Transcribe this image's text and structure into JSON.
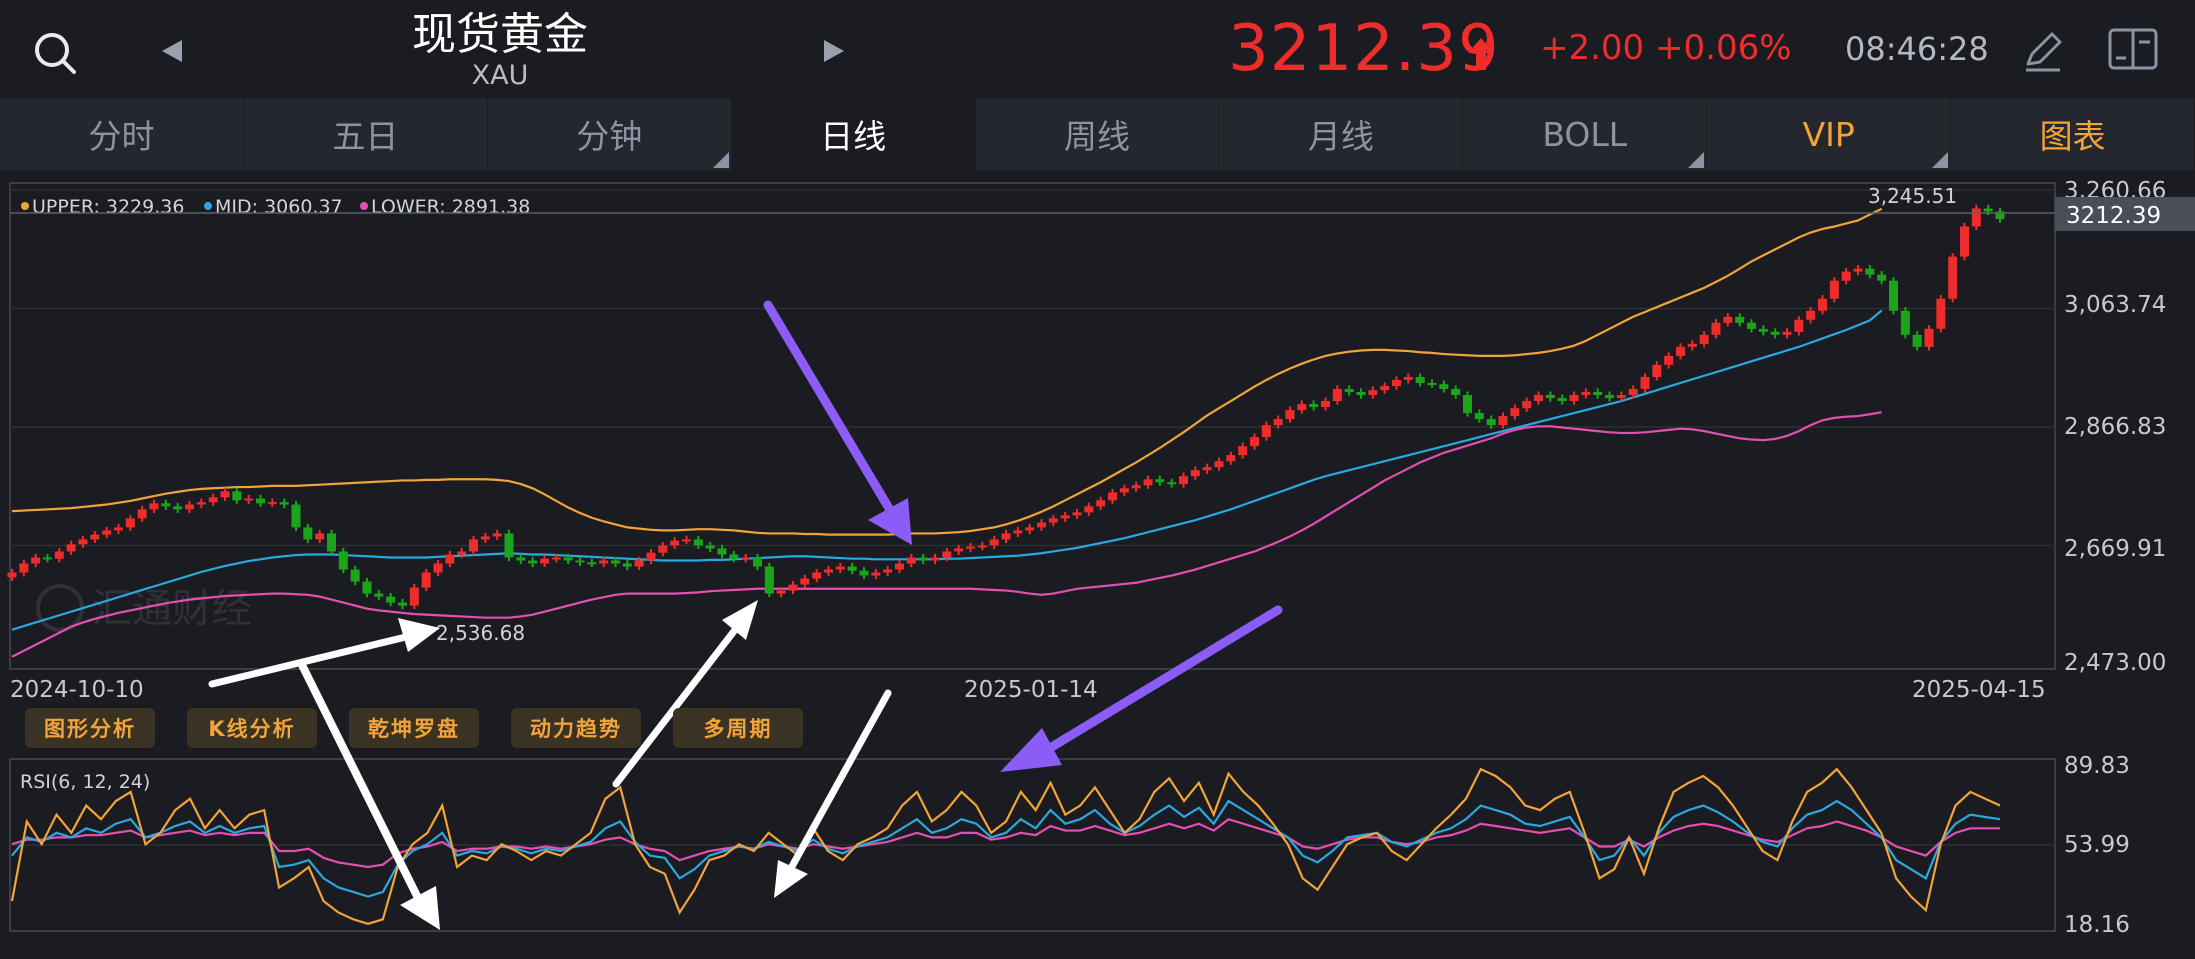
{
  "header": {
    "title": "现货黄金",
    "symbol": "XAU",
    "price": "3212.39",
    "change": "+2.00",
    "change_pct": "+0.06%",
    "time": "08:46:28",
    "icons": [
      "search-icon",
      "prev-arrow-icon",
      "next-arrow-icon",
      "price-up-arrow-icon",
      "pen-icon",
      "layout-toggle-icon"
    ],
    "colors": {
      "up": "#ee2c2c",
      "down": "#1aa51a",
      "accent": "#f2a33a"
    }
  },
  "tabs": [
    {
      "label": "分时",
      "active": false
    },
    {
      "label": "五日",
      "active": false
    },
    {
      "label": "分钟",
      "active": false
    },
    {
      "label": "日线",
      "active": true
    },
    {
      "label": "周线",
      "active": false
    },
    {
      "label": "月线",
      "active": false
    },
    {
      "label": "BOLL",
      "active": false
    },
    {
      "label": "VIP",
      "active": false
    },
    {
      "label": "图表",
      "active": false
    }
  ],
  "tools": [
    "图形分析",
    "K线分析",
    "乾坤罗盘",
    "动力趋势",
    "多周期"
  ],
  "watermark": "汇通财经",
  "chart_data": [
    {
      "type": "candlestick",
      "legend": {
        "upper_label": "UPPER: 3229.36",
        "mid_label": "MID: 3060.37",
        "lower_label": "LOWER: 2891.38"
      },
      "y_ticks": [
        "3,260.66",
        "3,063.74",
        "2,866.83",
        "2,669.91",
        "2,473.00"
      ],
      "ylim": [
        2473.0,
        3260.66
      ],
      "x_ticks": [
        "2024-10-10",
        "2025-01-14",
        "2025-04-15"
      ],
      "current_price_label": "3212.39",
      "high_annotation": "3,245.51",
      "low_annotation": "2,536.68",
      "series_colors": {
        "upper": "#f2a33a",
        "mid": "#2aa8e0",
        "lower": "#e54fb3"
      },
      "closes": [
        2625,
        2640,
        2650,
        2648,
        2660,
        2672,
        2680,
        2688,
        2695,
        2700,
        2715,
        2730,
        2740,
        2735,
        2730,
        2738,
        2742,
        2750,
        2760,
        2745,
        2748,
        2740,
        2742,
        2738,
        2700,
        2680,
        2690,
        2660,
        2630,
        2610,
        2590,
        2585,
        2575,
        2570,
        2600,
        2625,
        2640,
        2655,
        2660,
        2680,
        2685,
        2690,
        2650,
        2645,
        2640,
        2648,
        2650,
        2645,
        2642,
        2640,
        2645,
        2640,
        2635,
        2645,
        2658,
        2670,
        2678,
        2680,
        2670,
        2665,
        2655,
        2648,
        2650,
        2635,
        2590,
        2595,
        2605,
        2615,
        2625,
        2630,
        2635,
        2628,
        2620,
        2625,
        2630,
        2640,
        2650,
        2645,
        2650,
        2660,
        2665,
        2668,
        2670,
        2680,
        2690,
        2695,
        2700,
        2708,
        2715,
        2720,
        2725,
        2735,
        2745,
        2758,
        2765,
        2770,
        2780,
        2775,
        2772,
        2785,
        2795,
        2800,
        2810,
        2820,
        2835,
        2850,
        2870,
        2880,
        2895,
        2905,
        2900,
        2910,
        2930,
        2925,
        2920,
        2928,
        2935,
        2945,
        2950,
        2940,
        2938,
        2930,
        2920,
        2890,
        2880,
        2870,
        2885,
        2898,
        2910,
        2920,
        2915,
        2910,
        2920,
        2925,
        2920,
        2915,
        2920,
        2930,
        2950,
        2970,
        2985,
        3000,
        3005,
        3020,
        3040,
        3050,
        3040,
        3030,
        3025,
        3020,
        3025,
        3045,
        3060,
        3080,
        3110,
        3125,
        3130,
        3120,
        3110,
        3060,
        3020,
        3000,
        3030,
        3080,
        3150,
        3200,
        3230,
        3225,
        3212.39
      ],
      "upper": [
        2727,
        2728,
        2729,
        2730,
        2731,
        2732,
        2734,
        2736,
        2738,
        2741,
        2744,
        2748,
        2752,
        2756,
        2759,
        2762,
        2764,
        2765,
        2766,
        2767,
        2767,
        2768,
        2769,
        2769,
        2769,
        2770,
        2771,
        2772,
        2773,
        2774,
        2775,
        2776,
        2777,
        2778,
        2778,
        2779,
        2779,
        2780,
        2780,
        2780,
        2780,
        2779,
        2777,
        2772,
        2765,
        2755,
        2744,
        2733,
        2724,
        2716,
        2710,
        2705,
        2700,
        2698,
        2696,
        2695,
        2695,
        2696,
        2697,
        2697,
        2696,
        2695,
        2693,
        2691,
        2690,
        2690,
        2690,
        2689,
        2689,
        2688,
        2688,
        2688,
        2688,
        2688,
        2688,
        2689,
        2690,
        2690,
        2690,
        2691,
        2692,
        2694,
        2697,
        2700,
        2705,
        2711,
        2718,
        2726,
        2735,
        2745,
        2755,
        2765,
        2775,
        2786,
        2797,
        2808,
        2820,
        2832,
        2845,
        2858,
        2872,
        2886,
        2898,
        2910,
        2922,
        2934,
        2945,
        2955,
        2964,
        2972,
        2979,
        2985,
        2989,
        2992,
        2994,
        2995,
        2995,
        2994,
        2993,
        2991,
        2990,
        2988,
        2987,
        2986,
        2985,
        2985,
        2985,
        2986,
        2988,
        2990,
        2993,
        2997,
        3002,
        3010,
        3020,
        3030,
        3040,
        3050,
        3058,
        3066,
        3074,
        3082,
        3090,
        3098,
        3108,
        3118,
        3130,
        3142,
        3152,
        3162,
        3172,
        3182,
        3190,
        3196,
        3200,
        3205,
        3210,
        3220,
        3229.36
      ],
      "mid": [
        2530,
        2536,
        2542,
        2548,
        2554,
        2560,
        2566,
        2572,
        2578,
        2584,
        2590,
        2596,
        2602,
        2608,
        2614,
        2620,
        2626,
        2631,
        2636,
        2640,
        2644,
        2647,
        2650,
        2652,
        2654,
        2655,
        2655,
        2655,
        2654,
        2653,
        2652,
        2651,
        2650,
        2650,
        2650,
        2650,
        2651,
        2652,
        2653,
        2654,
        2655,
        2656,
        2657,
        2656,
        2655,
        2655,
        2654,
        2653,
        2652,
        2651,
        2650,
        2649,
        2648,
        2647,
        2646,
        2645,
        2645,
        2645,
        2645,
        2646,
        2646,
        2647,
        2648,
        2649,
        2650,
        2651,
        2652,
        2652,
        2651,
        2650,
        2649,
        2648,
        2648,
        2647,
        2647,
        2647,
        2647,
        2647,
        2647,
        2648,
        2648,
        2649,
        2650,
        2651,
        2652,
        2653,
        2655,
        2657,
        2660,
        2663,
        2666,
        2670,
        2674,
        2678,
        2682,
        2687,
        2692,
        2697,
        2702,
        2707,
        2712,
        2718,
        2724,
        2730,
        2737,
        2744,
        2751,
        2758,
        2765,
        2772,
        2779,
        2785,
        2790,
        2795,
        2800,
        2805,
        2810,
        2815,
        2820,
        2825,
        2830,
        2835,
        2840,
        2845,
        2850,
        2855,
        2860,
        2865,
        2870,
        2875,
        2880,
        2885,
        2890,
        2895,
        2900,
        2905,
        2910,
        2916,
        2922,
        2928,
        2934,
        2940,
        2946,
        2952,
        2958,
        2964,
        2970,
        2976,
        2982,
        2988,
        2994,
        3000,
        3007,
        3014,
        3021,
        3028,
        3036,
        3044,
        3060.37
      ],
      "lower": [
        2485,
        2495,
        2505,
        2515,
        2525,
        2535,
        2542,
        2548,
        2553,
        2558,
        2562,
        2566,
        2570,
        2574,
        2577,
        2580,
        2582,
        2584,
        2586,
        2587,
        2588,
        2589,
        2590,
        2590,
        2589,
        2588,
        2585,
        2580,
        2575,
        2570,
        2565,
        2562,
        2560,
        2558,
        2556,
        2555,
        2554,
        2553,
        2552,
        2551,
        2550,
        2550,
        2550,
        2552,
        2555,
        2560,
        2565,
        2570,
        2575,
        2580,
        2584,
        2588,
        2590,
        2590,
        2590,
        2590,
        2590,
        2591,
        2592,
        2594,
        2595,
        2596,
        2597,
        2598,
        2598,
        2598,
        2598,
        2598,
        2598,
        2598,
        2598,
        2598,
        2598,
        2598,
        2598,
        2598,
        2598,
        2598,
        2598,
        2598,
        2598,
        2598,
        2597,
        2596,
        2595,
        2593,
        2590,
        2588,
        2590,
        2594,
        2598,
        2600,
        2602,
        2604,
        2606,
        2608,
        2612,
        2616,
        2620,
        2625,
        2630,
        2636,
        2642,
        2648,
        2654,
        2660,
        2668,
        2676,
        2685,
        2695,
        2706,
        2718,
        2730,
        2742,
        2754,
        2766,
        2778,
        2788,
        2798,
        2808,
        2816,
        2824,
        2830,
        2836,
        2842,
        2848,
        2856,
        2862,
        2866,
        2868,
        2868,
        2866,
        2864,
        2862,
        2860,
        2858,
        2857,
        2857,
        2858,
        2860,
        2862,
        2864,
        2863,
        2860,
        2856,
        2852,
        2848,
        2846,
        2845,
        2847,
        2852,
        2860,
        2870,
        2878,
        2882,
        2884,
        2885,
        2888,
        2891.38
      ]
    },
    {
      "type": "line",
      "legend_label": "RSI(6, 12, 24)",
      "y_ticks": [
        "89.83",
        "53.99",
        "18.16"
      ],
      "ylim": [
        18.16,
        89.83
      ],
      "series_colors": {
        "rsi6": "#f2a33a",
        "rsi12": "#2aa8e0",
        "rsi24": "#e54fb3"
      },
      "rsi6": [
        30,
        65,
        55,
        68,
        60,
        72,
        66,
        74,
        78,
        55,
        60,
        70,
        75,
        62,
        70,
        62,
        68,
        70,
        36,
        40,
        45,
        30,
        25,
        22,
        20,
        22,
        45,
        55,
        60,
        72,
        45,
        50,
        48,
        55,
        52,
        48,
        52,
        50,
        55,
        60,
        75,
        80,
        55,
        45,
        42,
        25,
        35,
        48,
        50,
        55,
        52,
        60,
        55,
        50,
        62,
        52,
        48,
        55,
        58,
        62,
        72,
        78,
        65,
        70,
        78,
        72,
        60,
        65,
        78,
        70,
        82,
        68,
        72,
        80,
        70,
        60,
        66,
        78,
        84,
        74,
        82,
        68,
        86,
        78,
        72,
        64,
        55,
        40,
        35,
        45,
        55,
        58,
        60,
        52,
        48,
        55,
        62,
        68,
        75,
        88,
        85,
        80,
        72,
        70,
        75,
        78,
        60,
        40,
        44,
        58,
        42,
        62,
        78,
        82,
        85,
        80,
        72,
        62,
        52,
        48,
        65,
        78,
        82,
        88,
        80,
        70,
        60,
        40,
        32,
        26,
        55,
        72,
        78,
        75,
        72
      ],
      "rsi12": [
        50,
        58,
        56,
        60,
        58,
        62,
        60,
        64,
        66,
        58,
        60,
        63,
        65,
        60,
        63,
        60,
        62,
        63,
        45,
        46,
        48,
        40,
        36,
        34,
        32,
        34,
        46,
        52,
        55,
        60,
        50,
        52,
        51,
        54,
        53,
        51,
        53,
        52,
        54,
        56,
        62,
        65,
        56,
        50,
        49,
        40,
        44,
        50,
        52,
        54,
        53,
        56,
        54,
        52,
        57,
        53,
        51,
        54,
        56,
        58,
        62,
        66,
        60,
        62,
        66,
        64,
        58,
        60,
        66,
        62,
        70,
        64,
        66,
        70,
        64,
        60,
        63,
        68,
        72,
        67,
        71,
        64,
        74,
        70,
        66,
        62,
        58,
        50,
        47,
        52,
        58,
        59,
        60,
        56,
        54,
        57,
        60,
        62,
        66,
        72,
        70,
        68,
        64,
        63,
        65,
        67,
        58,
        48,
        50,
        58,
        50,
        60,
        67,
        70,
        72,
        69,
        65,
        60,
        56,
        54,
        62,
        68,
        70,
        74,
        70,
        64,
        58,
        48,
        44,
        40,
        56,
        64,
        68,
        67,
        66
      ],
      "rsi24": [
        55,
        57,
        57,
        58,
        58,
        59,
        59,
        60,
        61,
        58,
        59,
        60,
        61,
        59,
        60,
        59,
        60,
        60,
        52,
        52,
        53,
        49,
        47,
        46,
        45,
        46,
        51,
        53,
        54,
        56,
        52,
        53,
        53,
        54,
        54,
        53,
        54,
        53,
        54,
        55,
        57,
        58,
        55,
        53,
        52,
        48,
        50,
        52,
        53,
        54,
        53,
        55,
        54,
        53,
        55,
        54,
        53,
        54,
        55,
        56,
        58,
        60,
        58,
        58,
        60,
        60,
        57,
        58,
        60,
        59,
        63,
        61,
        61,
        63,
        61,
        59,
        60,
        62,
        64,
        62,
        64,
        61,
        66,
        64,
        62,
        60,
        58,
        54,
        53,
        55,
        57,
        58,
        58,
        56,
        55,
        56,
        58,
        59,
        61,
        64,
        63,
        62,
        61,
        60,
        61,
        62,
        58,
        54,
        54,
        57,
        54,
        58,
        61,
        63,
        64,
        63,
        61,
        59,
        57,
        56,
        59,
        62,
        63,
        65,
        63,
        61,
        58,
        54,
        52,
        50,
        56,
        60,
        62,
        62,
        62
      ]
    }
  ]
}
